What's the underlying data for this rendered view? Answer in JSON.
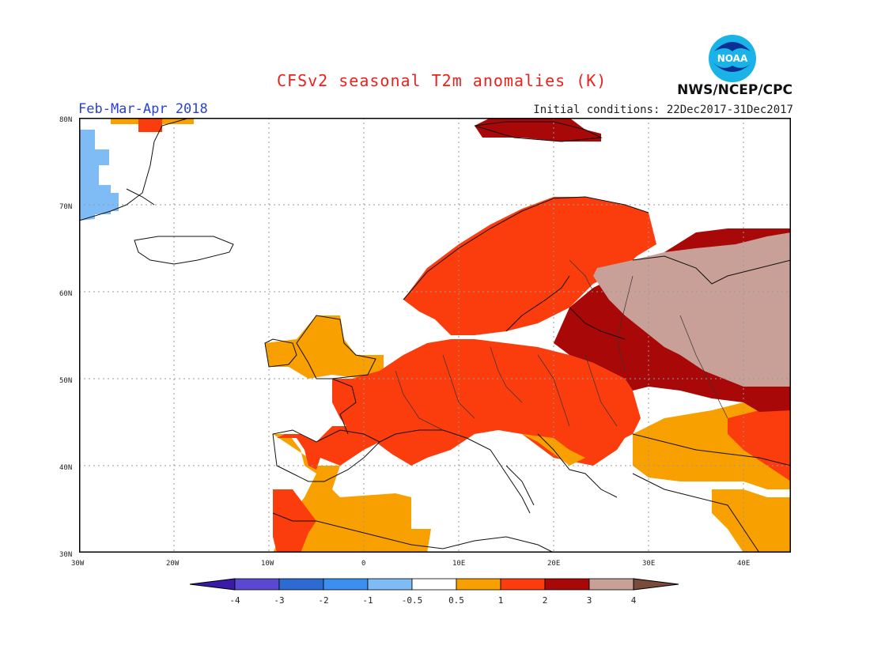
{
  "title": "CFSv2 seasonal T2m anomalies (K)",
  "period": "Feb-Mar-Apr 2018",
  "initial_conditions": "Initial conditions: 22Dec2017-31Dec2017",
  "organization": "NWS/NCEP/CPC",
  "logo_text": "NOAA",
  "lat_ticks": [
    "30N",
    "40N",
    "50N",
    "60N",
    "70N",
    "80N"
  ],
  "lon_ticks": [
    "30W",
    "20W",
    "10W",
    "0",
    "10E",
    "20E",
    "30E",
    "40E"
  ],
  "colorbar": {
    "labels": [
      "-4",
      "-3",
      "-2",
      "-1",
      "-0.5",
      "0.5",
      "1",
      "2",
      "3",
      "4"
    ],
    "colors": [
      "#3a1aa8",
      "#5a48d0",
      "#2c6bd2",
      "#3b8ff0",
      "#7fbcf5",
      "#ffffff",
      "#f7a000",
      "#fb3c0c",
      "#a80808",
      "#c8a097",
      "#7a4a3a"
    ]
  },
  "colors": {
    "title": "#e8231e",
    "period": "#2a3fd6",
    "warm_05_1": "#f7a000",
    "warm_1_2": "#fb3c0c",
    "warm_2_3": "#a80808",
    "warm_3_4": "#c8a097",
    "cool_05_1": "#7fbcf5"
  }
}
